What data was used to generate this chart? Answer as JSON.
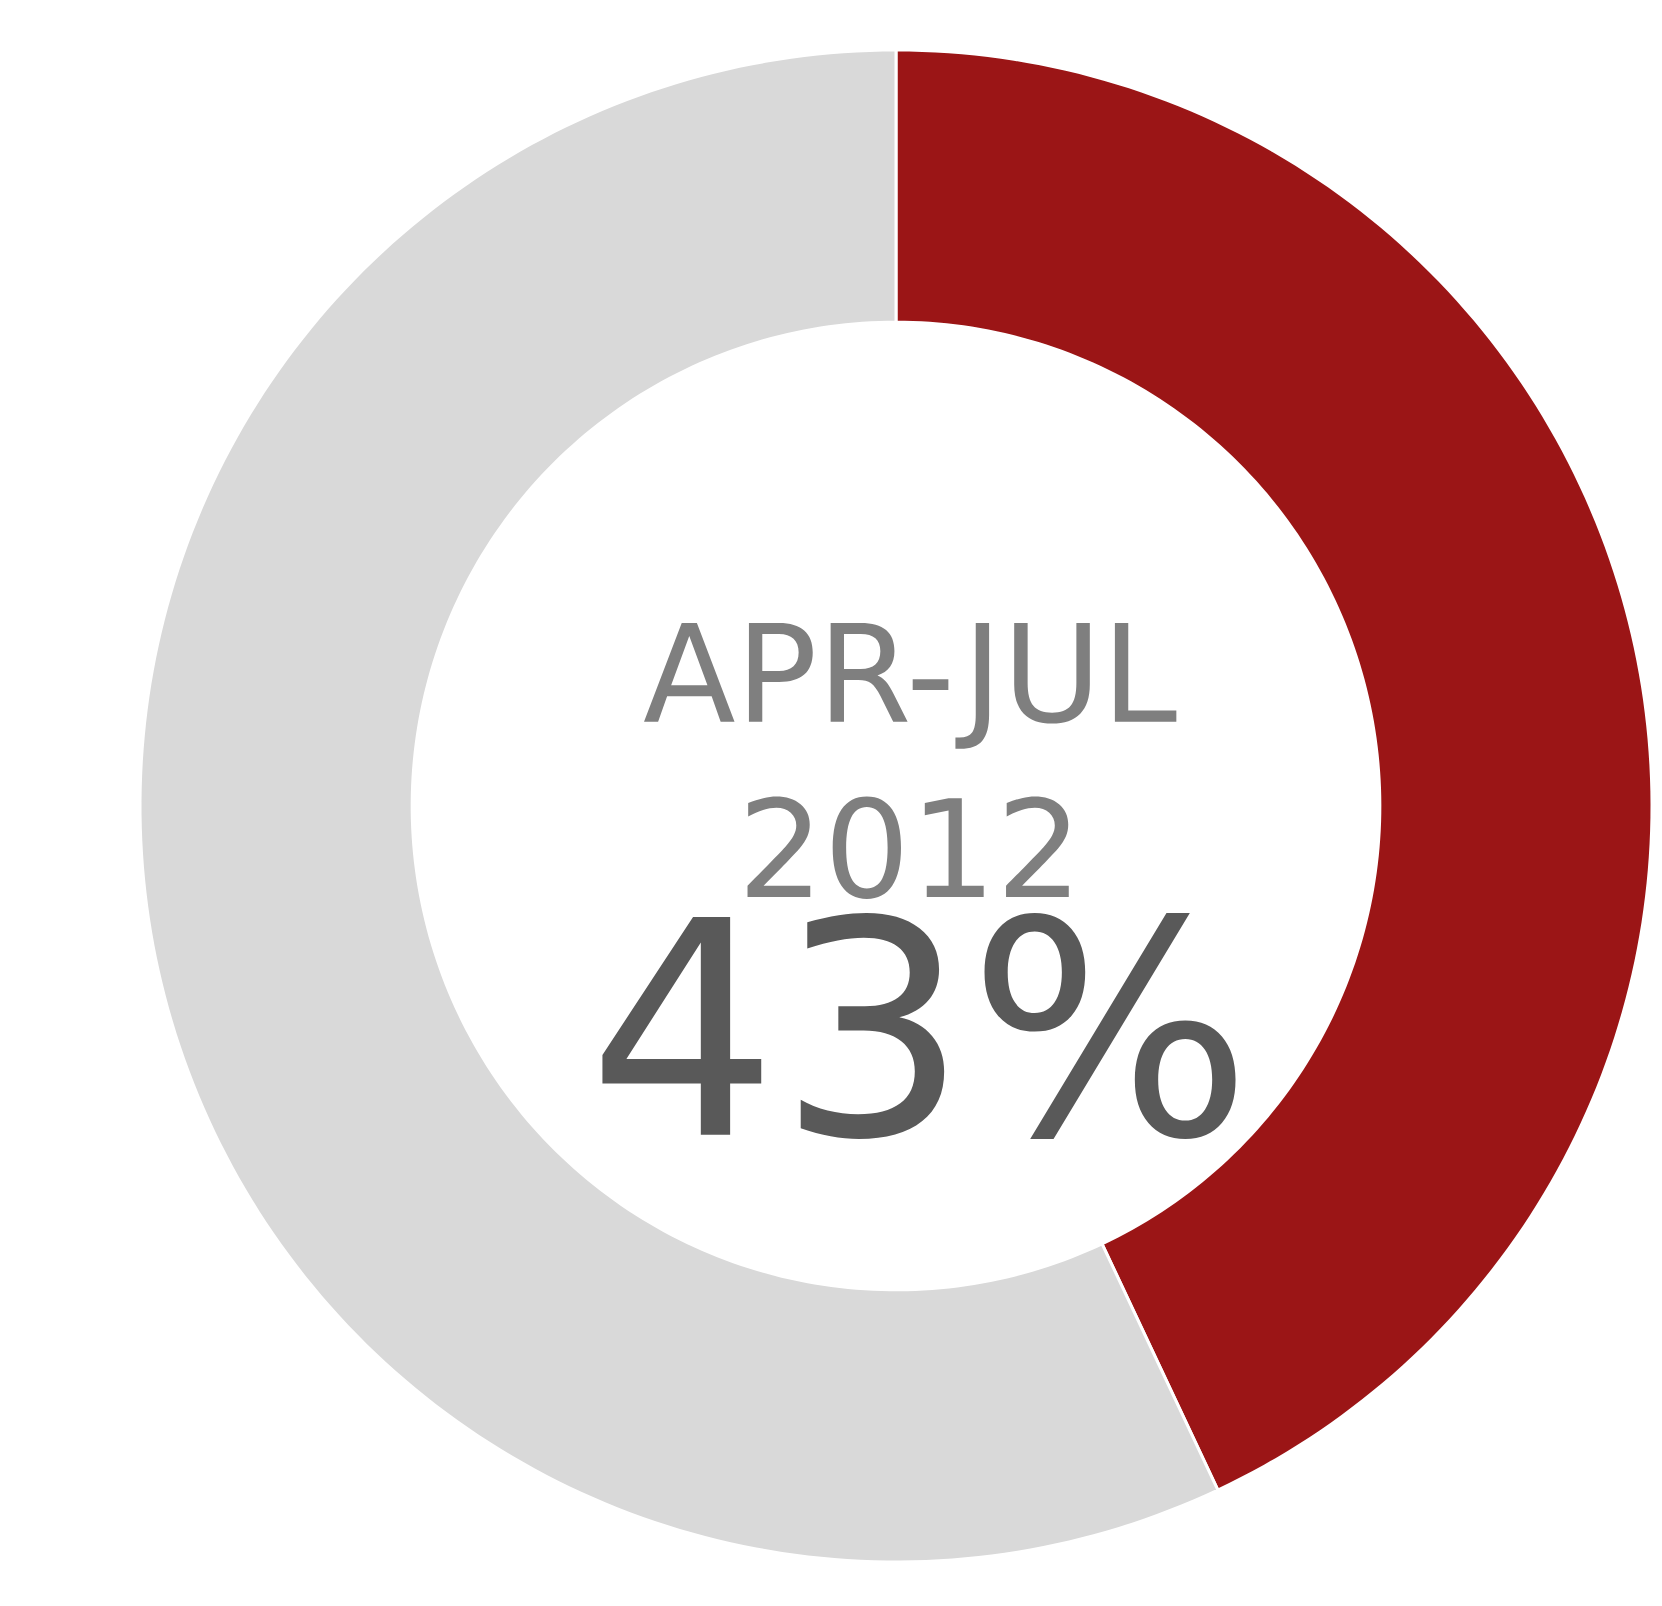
{
  "chart_data": {
    "type": "donut",
    "title": "APR-JUL 2012",
    "categories": [
      null,
      null
    ],
    "values": [
      43,
      57
    ],
    "colors": [
      "#9b1516",
      "#d9d9d9"
    ],
    "annotations": [
      "43%"
    ]
  }
}
